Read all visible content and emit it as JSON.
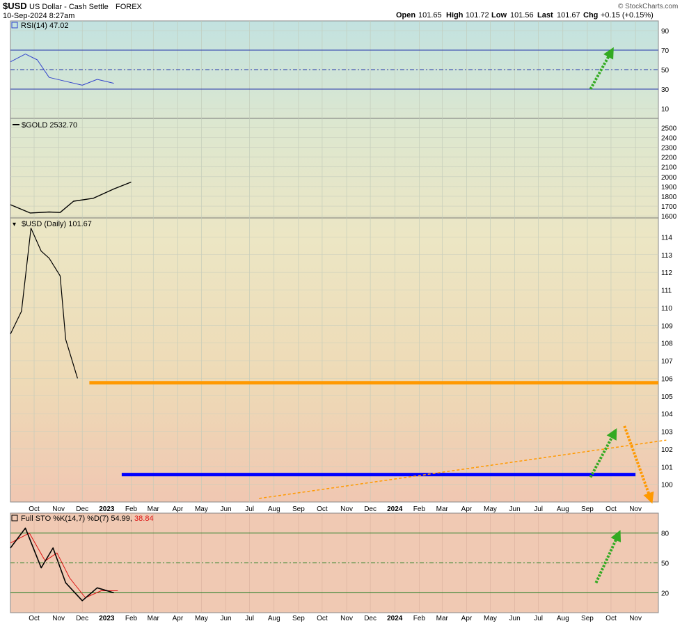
{
  "header": {
    "symbol": "$USD",
    "name": "US Dollar - Cash Settle",
    "exchange": "FOREX",
    "date": "10-Sep-2024 8:27am",
    "brand": "© StockCharts.com",
    "open_label": "Open",
    "open": "101.65",
    "high_label": "High",
    "high": "101.72",
    "low_label": "Low",
    "low": "101.56",
    "last_label": "Last",
    "last": "101.67",
    "chg_label": "Chg",
    "chg": "+0.15 (+0.15%)"
  },
  "colors": {
    "price": "#000000",
    "rsi": "#3344cc",
    "stoch_k": "#000000",
    "stoch_d": "#dd1111",
    "resistance": "#ff9900",
    "support": "#0000ff",
    "trendline": "#ff9900",
    "arrow_up": "#33aa22",
    "arrow_down": "#ff9900"
  },
  "chart_data": [
    {
      "type": "line",
      "panel": "rsi",
      "label": "RSI(14) 47.02",
      "x_range": [
        "2022-09-01",
        "2024-11-30"
      ],
      "ylim": [
        0,
        100
      ],
      "ticks": [
        90,
        70,
        50,
        30,
        10
      ],
      "levels": [
        70,
        50,
        30
      ],
      "series": [
        {
          "name": "RSI(14)",
          "points": [
            [
              "2022-09-01",
              58
            ],
            [
              "2022-09-20",
              66
            ],
            [
              "2022-10-05",
              60
            ],
            [
              "2022-10-20",
              42
            ],
            [
              "2022-11-10",
              38
            ],
            [
              "2022-12-01",
              34
            ],
            [
              "2022-12-20",
              40
            ],
            [
              "2023-01-10",
              36
            ]
          ]
        }
      ]
    },
    {
      "type": "line",
      "panel": "gold",
      "label": "$GOLD 2532.70",
      "x_range": [
        "2022-09-01",
        "2024-11-30"
      ],
      "ylim": [
        1580,
        2580
      ],
      "ticks": [
        2500,
        2400,
        2300,
        2200,
        2100,
        2000,
        1900,
        1800,
        1700,
        1600
      ],
      "series": [
        {
          "name": "$GOLD",
          "points": [
            [
              "2022-09-01",
              1715
            ],
            [
              "2022-09-26",
              1630
            ],
            [
              "2022-10-20",
              1640
            ],
            [
              "2022-11-03",
              1635
            ],
            [
              "2022-11-20",
              1750
            ],
            [
              "2022-12-15",
              1780
            ],
            [
              "2023-01-10",
              1875
            ],
            [
              "2023-02-01",
              1945
            ]
          ]
        }
      ]
    },
    {
      "type": "line",
      "panel": "price",
      "label": "$USD (Daily) 101.67",
      "x_range": [
        "2022-09-01",
        "2024-11-30"
      ],
      "ylim": [
        99,
        115
      ],
      "ticks": [
        114,
        113,
        112,
        111,
        110,
        109,
        108,
        107,
        106,
        105,
        104,
        103,
        102,
        101,
        100
      ],
      "series": [
        {
          "name": "$USD",
          "points": [
            [
              "2022-09-01",
              108.5
            ],
            [
              "2022-09-15",
              109.8
            ],
            [
              "2022-09-27",
              114.5
            ],
            [
              "2022-10-10",
              113.2
            ],
            [
              "2022-10-20",
              112.8
            ],
            [
              "2022-11-03",
              111.8
            ],
            [
              "2022-11-10",
              108.2
            ],
            [
              "2022-11-25",
              106.0
            ]
          ]
        }
      ],
      "annotations": [
        {
          "kind": "resistance",
          "x": [
            "2022-12-10",
            "2024-11-30"
          ],
          "y": 105.75
        },
        {
          "kind": "support",
          "x": [
            "2023-01-20",
            "2024-11-01"
          ],
          "y": 100.55
        },
        {
          "kind": "trendline",
          "x": [
            "2023-07-13",
            "2024-12-10"
          ],
          "y": [
            99.2,
            102.5
          ]
        },
        {
          "kind": "arrow-up",
          "x": [
            "2024-09-05",
            "2024-10-05"
          ],
          "y": [
            100.4,
            102.9
          ]
        },
        {
          "kind": "arrow-down",
          "x": [
            "2024-10-18",
            "2024-11-20"
          ],
          "y": [
            103.3,
            99.2
          ]
        }
      ]
    },
    {
      "type": "line",
      "panel": "stoch",
      "label": "Full STO %K(14,7) %D(7) 54.99, 38.84",
      "x_range": [
        "2022-09-01",
        "2024-11-30"
      ],
      "ylim": [
        0,
        100
      ],
      "ticks": [
        80,
        50,
        20
      ],
      "levels": [
        80,
        50,
        20
      ],
      "series": [
        {
          "name": "%K",
          "points": [
            [
              "2022-09-01",
              65
            ],
            [
              "2022-09-20",
              85
            ],
            [
              "2022-10-10",
              45
            ],
            [
              "2022-10-25",
              65
            ],
            [
              "2022-11-10",
              30
            ],
            [
              "2022-12-01",
              12
            ],
            [
              "2022-12-20",
              25
            ],
            [
              "2023-01-10",
              20
            ]
          ]
        },
        {
          "name": "%D",
          "points": [
            [
              "2022-09-01",
              70
            ],
            [
              "2022-09-25",
              80
            ],
            [
              "2022-10-15",
              52
            ],
            [
              "2022-10-30",
              60
            ],
            [
              "2022-11-15",
              35
            ],
            [
              "2022-12-05",
              15
            ],
            [
              "2022-12-25",
              22
            ],
            [
              "2023-01-15",
              22
            ]
          ]
        }
      ]
    }
  ],
  "x_axis": {
    "labels": [
      {
        "date": "2022-10-01",
        "text": "Oct"
      },
      {
        "date": "2022-11-01",
        "text": "Nov"
      },
      {
        "date": "2022-12-01",
        "text": "Dec"
      },
      {
        "date": "2023-01-01",
        "text": "2023"
      },
      {
        "date": "2023-02-01",
        "text": "Feb"
      },
      {
        "date": "2023-03-01",
        "text": "Mar"
      },
      {
        "date": "2023-04-01",
        "text": "Apr"
      },
      {
        "date": "2023-05-01",
        "text": "May"
      },
      {
        "date": "2023-06-01",
        "text": "Jun"
      },
      {
        "date": "2023-07-01",
        "text": "Jul"
      },
      {
        "date": "2023-08-01",
        "text": "Aug"
      },
      {
        "date": "2023-09-01",
        "text": "Sep"
      },
      {
        "date": "2023-10-01",
        "text": "Oct"
      },
      {
        "date": "2023-11-01",
        "text": "Nov"
      },
      {
        "date": "2023-12-01",
        "text": "Dec"
      },
      {
        "date": "2024-01-01",
        "text": "2024"
      },
      {
        "date": "2024-02-01",
        "text": "Feb"
      },
      {
        "date": "2024-03-01",
        "text": "Mar"
      },
      {
        "date": "2024-04-01",
        "text": "Apr"
      },
      {
        "date": "2024-05-01",
        "text": "May"
      },
      {
        "date": "2024-06-01",
        "text": "Jun"
      },
      {
        "date": "2024-07-01",
        "text": "Jul"
      },
      {
        "date": "2024-08-01",
        "text": "Aug"
      },
      {
        "date": "2024-09-01",
        "text": "Sep"
      },
      {
        "date": "2024-10-01",
        "text": "Oct"
      },
      {
        "date": "2024-11-01",
        "text": "Nov"
      }
    ]
  }
}
